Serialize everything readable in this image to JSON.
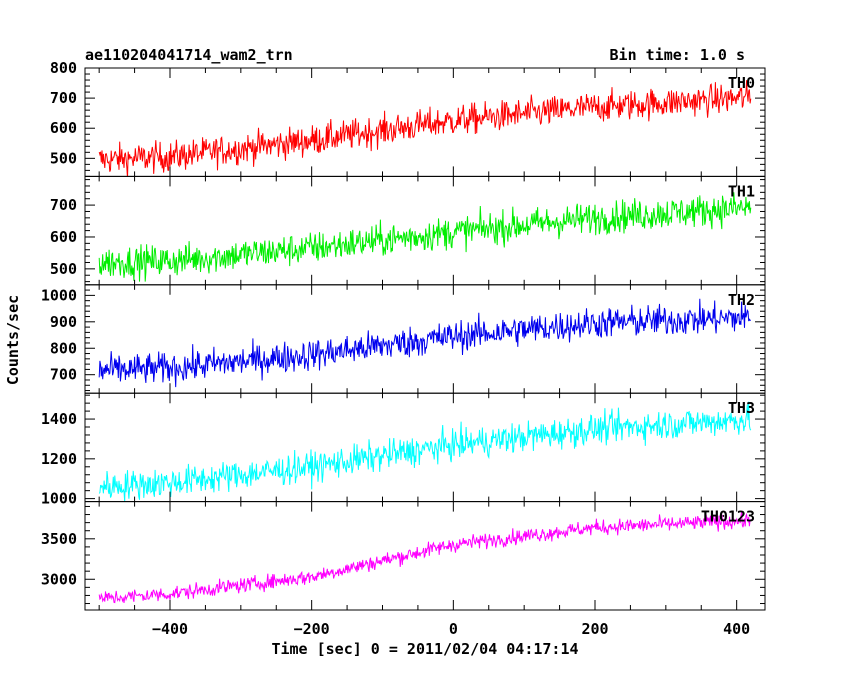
{
  "header": {
    "left_title": "ae110204041714_wam2_trn",
    "right_title": "Bin time: 1.0 s"
  },
  "chart_data": {
    "type": "line",
    "title": "ae110204041714_wam2_trn",
    "subtitle": "Bin time: 1.0 s",
    "xlabel": "Time [sec] 0 = 2011/02/04 04:17:14",
    "ylabel": "Counts/sec",
    "xlim": [
      -520,
      440
    ],
    "x_ticks": [
      -400,
      -200,
      0,
      200,
      400
    ],
    "x_range_data": [
      -500,
      420
    ],
    "bin_time_s": 1.0,
    "grid": false,
    "panels": [
      {
        "name": "TH0",
        "color": "#ff0000",
        "ylim": [
          440,
          800
        ],
        "y_ticks": [
          500,
          600,
          700,
          800
        ],
        "trend": {
          "x": [
            -500,
            -400,
            -200,
            0,
            200,
            400,
            420
          ],
          "y": [
            495,
            505,
            560,
            625,
            670,
            700,
            705
          ]
        },
        "noise_amplitude": 60
      },
      {
        "name": "TH1",
        "color": "#00ee00",
        "ylim": [
          450,
          790
        ],
        "y_ticks": [
          500,
          600,
          700
        ],
        "trend": {
          "x": [
            -500,
            -400,
            -200,
            0,
            200,
            400,
            420
          ],
          "y": [
            520,
            525,
            565,
            615,
            660,
            690,
            692
          ]
        },
        "noise_amplitude": 60
      },
      {
        "name": "TH2",
        "color": "#0000ee",
        "ylim": [
          630,
          1040
        ],
        "y_ticks": [
          700,
          800,
          900,
          1000
        ],
        "trend": {
          "x": [
            -500,
            -400,
            -200,
            0,
            200,
            400,
            420
          ],
          "y": [
            715,
            725,
            775,
            845,
            895,
            915,
            918
          ]
        },
        "noise_amplitude": 70
      },
      {
        "name": "TH3",
        "color": "#00ffff",
        "ylim": [
          985,
          1530
        ],
        "y_ticks": [
          1000,
          1200,
          1400
        ],
        "trend": {
          "x": [
            -500,
            -400,
            -200,
            0,
            200,
            400,
            420
          ],
          "y": [
            1060,
            1080,
            1160,
            1270,
            1350,
            1395,
            1400
          ]
        },
        "noise_amplitude": 90
      },
      {
        "name": "TH0123",
        "color": "#ff00ff",
        "ylim": [
          2620,
          3960
        ],
        "y_ticks": [
          3000,
          3500
        ],
        "trend": {
          "x": [
            -500,
            -400,
            -200,
            0,
            200,
            400,
            420
          ],
          "y": [
            2760,
            2820,
            3030,
            3430,
            3640,
            3720,
            3725
          ]
        },
        "noise_amplitude": 110
      }
    ]
  }
}
